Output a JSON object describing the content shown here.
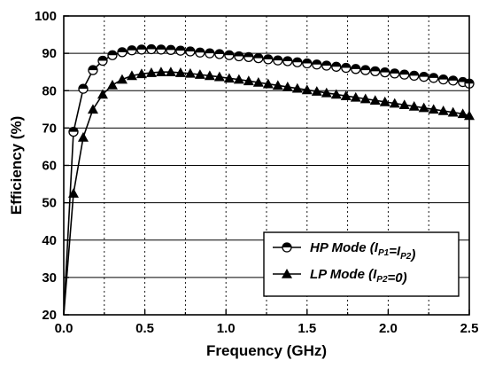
{
  "chart_data": {
    "type": "line",
    "xlabel": "Frequency (GHz)",
    "ylabel": "Efficiency (%)",
    "xlim": [
      0.0,
      2.5
    ],
    "ylim": [
      20,
      100
    ],
    "xticks": [
      "0.0",
      "0.5",
      "1.0",
      "1.5",
      "2.0",
      "2.5"
    ],
    "yticks": [
      "20",
      "30",
      "40",
      "50",
      "60",
      "70",
      "80",
      "90",
      "100"
    ],
    "grid": "dotted vertical lines at every 0.25 GHz, solid horizontal lines at every 10 %",
    "legend_position": "lower-right",
    "legend": [
      {
        "marker": "half-filled-circle",
        "prefix": "HP Mode (",
        "parts": [
          {
            "text": "I",
            "sub": "P1"
          },
          {
            "text": "=I",
            "sub": "P2"
          }
        ],
        "suffix": ")"
      },
      {
        "marker": "filled-triangle",
        "prefix": "LP Mode (",
        "parts": [
          {
            "text": "I",
            "sub": "P2"
          }
        ],
        "suffix": "=0)"
      }
    ],
    "series": [
      {
        "marker": "half-filled-circle",
        "color": "#000000",
        "x": [
          0.0,
          0.06,
          0.12,
          0.18,
          0.24,
          0.3,
          0.36,
          0.42,
          0.48,
          0.54,
          0.6,
          0.66,
          0.72,
          0.78,
          0.84,
          0.9,
          0.96,
          1.02,
          1.08,
          1.14,
          1.2,
          1.26,
          1.32,
          1.38,
          1.44,
          1.5,
          1.56,
          1.62,
          1.68,
          1.74,
          1.8,
          1.86,
          1.92,
          1.98,
          2.04,
          2.1,
          2.16,
          2.22,
          2.28,
          2.34,
          2.4,
          2.46,
          2.5
        ],
        "y": [
          20,
          69,
          80.5,
          85.5,
          88,
          89.5,
          90.3,
          90.8,
          91,
          91.1,
          91,
          90.9,
          90.7,
          90.5,
          90.2,
          90,
          89.8,
          89.5,
          89.2,
          89,
          88.7,
          88.4,
          88.1,
          87.9,
          87.6,
          87.3,
          87,
          86.7,
          86.4,
          86.1,
          85.8,
          85.5,
          85.2,
          84.9,
          84.6,
          84.3,
          84,
          83.7,
          83.4,
          83.0,
          82.7,
          82.3,
          81.9
        ]
      },
      {
        "marker": "filled-triangle",
        "color": "#000000",
        "x": [
          0.0,
          0.06,
          0.12,
          0.18,
          0.24,
          0.3,
          0.36,
          0.42,
          0.48,
          0.54,
          0.6,
          0.66,
          0.72,
          0.78,
          0.84,
          0.9,
          0.96,
          1.02,
          1.08,
          1.14,
          1.2,
          1.26,
          1.32,
          1.38,
          1.44,
          1.5,
          1.56,
          1.62,
          1.68,
          1.74,
          1.8,
          1.86,
          1.92,
          1.98,
          2.04,
          2.1,
          2.16,
          2.22,
          2.28,
          2.34,
          2.4,
          2.46,
          2.5
        ],
        "y": [
          20,
          52.5,
          67.5,
          75,
          79,
          81.5,
          83,
          84,
          84.5,
          84.8,
          85,
          85,
          84.8,
          84.6,
          84.3,
          84,
          83.7,
          83.3,
          83,
          82.6,
          82.2,
          81.8,
          81.4,
          81,
          80.6,
          80.2,
          79.8,
          79.4,
          79,
          78.6,
          78.2,
          77.8,
          77.4,
          77,
          76.6,
          76.2,
          75.8,
          75.4,
          75,
          74.6,
          74.2,
          73.8,
          73.3
        ]
      }
    ]
  }
}
